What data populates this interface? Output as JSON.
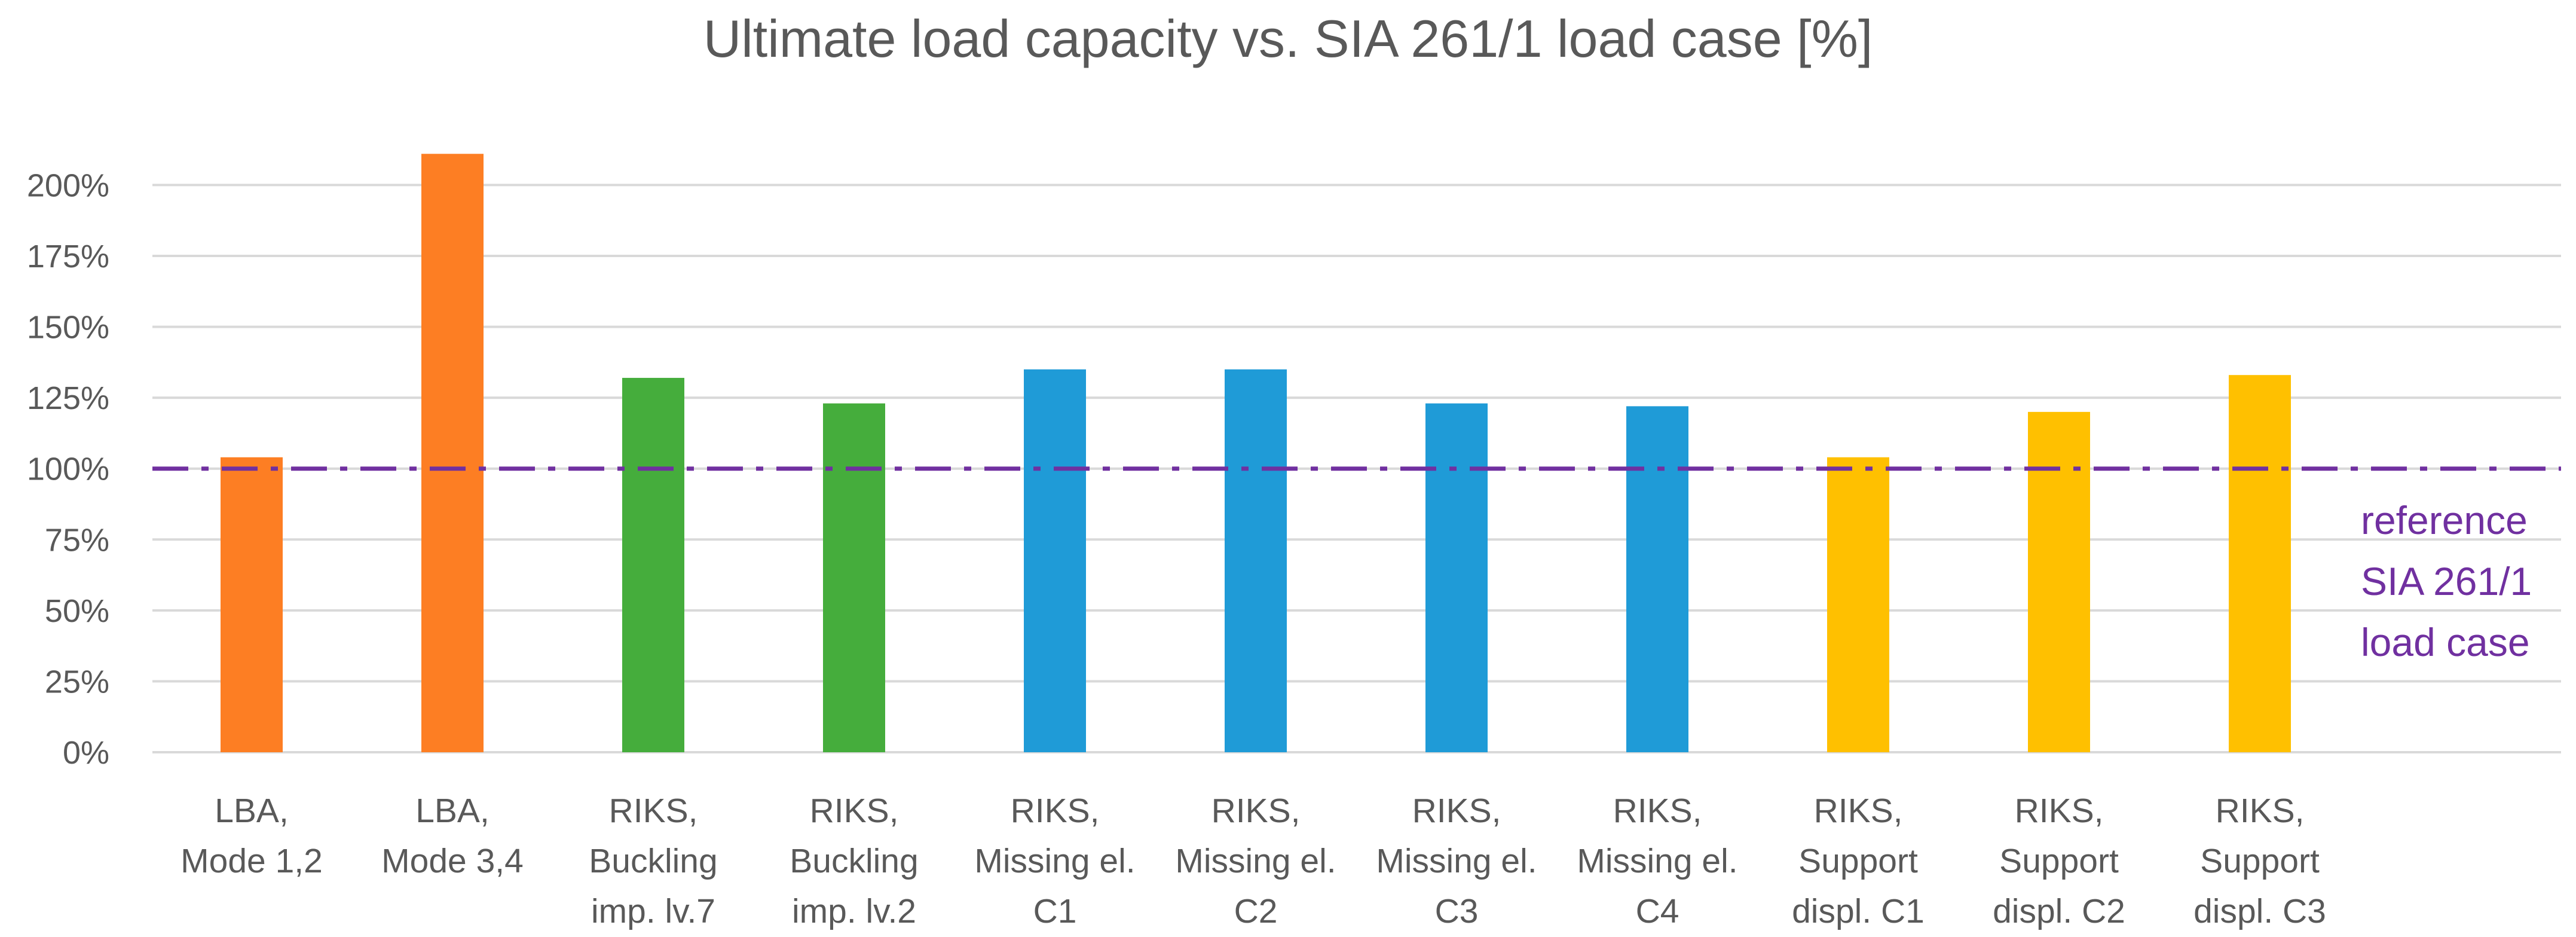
{
  "chart_data": {
    "type": "bar",
    "title": "Ultimate load capacity vs. SIA 261/1 load case [%]",
    "xlabel": "",
    "ylabel": "",
    "ylim": [
      0,
      2.1
    ],
    "yticks": [
      0,
      0.25,
      0.5,
      0.75,
      1.0,
      1.25,
      1.5,
      1.75,
      2.0
    ],
    "ytick_labels": [
      "0%",
      "25%",
      "50%",
      "75%",
      "100%",
      "125%",
      "150%",
      "175%",
      "200%"
    ],
    "grid": true,
    "categories": [
      [
        "LBA,",
        "Mode 1,2"
      ],
      [
        "LBA,",
        "Mode 3,4"
      ],
      [
        "RIKS,",
        "Buckling",
        "imp. lv.7"
      ],
      [
        "RIKS,",
        "Buckling",
        "imp. lv.2"
      ],
      [
        "RIKS,",
        "Missing el.",
        "C1"
      ],
      [
        "RIKS,",
        "Missing el.",
        "C2"
      ],
      [
        "RIKS,",
        "Missing el.",
        "C3"
      ],
      [
        "RIKS,",
        "Missing el.",
        "C4"
      ],
      [
        "RIKS,",
        "Support",
        "displ. C1"
      ],
      [
        "RIKS,",
        "Support",
        "displ. C2"
      ],
      [
        "RIKS,",
        "Support",
        "displ. C3"
      ]
    ],
    "values": [
      1.04,
      2.11,
      1.32,
      1.23,
      1.35,
      1.35,
      1.23,
      1.22,
      1.04,
      1.2,
      1.33
    ],
    "bar_colors": [
      "#fd7e23",
      "#fd7e23",
      "#45ad3c",
      "#45ad3c",
      "#1f9bd7",
      "#1f9bd7",
      "#1f9bd7",
      "#1f9bd7",
      "#ffc000",
      "#ffc000",
      "#ffc000"
    ],
    "reference": {
      "value": 1.0,
      "label_lines": [
        "reference",
        "SIA 261/1",
        "load case"
      ],
      "color": "#7030a0",
      "style": "dash-dot"
    }
  }
}
